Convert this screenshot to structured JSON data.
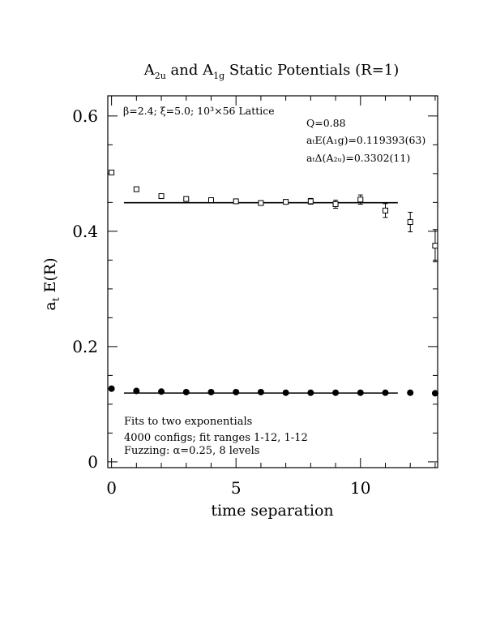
{
  "chart_data": {
    "type": "scatter",
    "title": "A₂ᵤ and A₁g Static Potentials (R=1)",
    "title_parts": {
      "a": "A",
      "a_sub": "2u",
      "b": " and A",
      "b_sub": "1g",
      "c": " Static Potentials (R=1)"
    },
    "xlabel": "time separation",
    "ylabel": "aₜ E(R)",
    "ylabel_parts": {
      "main": "a",
      "sub": "t",
      "rest": " E(R)"
    },
    "xlim": [
      -0.15,
      13.1
    ],
    "ylim": [
      -0.01,
      0.635
    ],
    "x_ticks": [
      0,
      5,
      10
    ],
    "x_tick_labels": [
      "0",
      "5",
      "10"
    ],
    "y_ticks": [
      0,
      0.2,
      0.4,
      0.6
    ],
    "y_tick_labels": [
      "0",
      "0.2",
      "0.4",
      "0.6"
    ],
    "grid": false,
    "annotations": {
      "top_left": "β=2.4; ξ=5.0; 10³×56 Lattice",
      "q": "Q=0.88",
      "e_a1g": "aₜE(A₁g)=0.119393(63)",
      "delta_a2u": "aₜΔ(A₂ᵤ)=0.3302(11)",
      "fits": "Fits to two exponentials",
      "configs": "4000 configs; fit ranges 1-12, 1-12",
      "fuzzing": "Fuzzing: α=0.25, 8 levels"
    },
    "series": [
      {
        "marker": "open-square",
        "x": [
          0,
          1,
          2,
          3,
          4,
          5,
          6,
          7,
          8,
          9,
          10,
          11,
          12,
          13
        ],
        "y": [
          0.502,
          0.473,
          0.461,
          0.456,
          0.454,
          0.452,
          0.449,
          0.451,
          0.452,
          0.447,
          0.455,
          0.436,
          0.416,
          0.375
        ],
        "err": [
          0.001,
          0.002,
          0.003,
          0.004,
          0.003,
          0.003,
          0.003,
          0.004,
          0.005,
          0.007,
          0.008,
          0.012,
          0.017,
          0.028
        ]
      },
      {
        "marker": "filled-circle",
        "x": [
          0,
          1,
          2,
          3,
          4,
          5,
          6,
          7,
          8,
          9,
          10,
          11,
          12,
          13
        ],
        "y": [
          0.127,
          0.123,
          0.122,
          0.121,
          0.121,
          0.121,
          0.121,
          0.12,
          0.12,
          0.12,
          0.12,
          0.12,
          0.12,
          0.119
        ],
        "err": [
          0,
          0,
          0,
          0,
          0,
          0,
          0,
          0,
          0,
          0,
          0,
          0,
          0,
          0
        ]
      }
    ],
    "fit_lines": [
      {
        "x": [
          0.5,
          11.5
        ],
        "y": 0.4495
      },
      {
        "x": [
          0.5,
          11.5
        ],
        "y": 0.1194
      }
    ]
  }
}
